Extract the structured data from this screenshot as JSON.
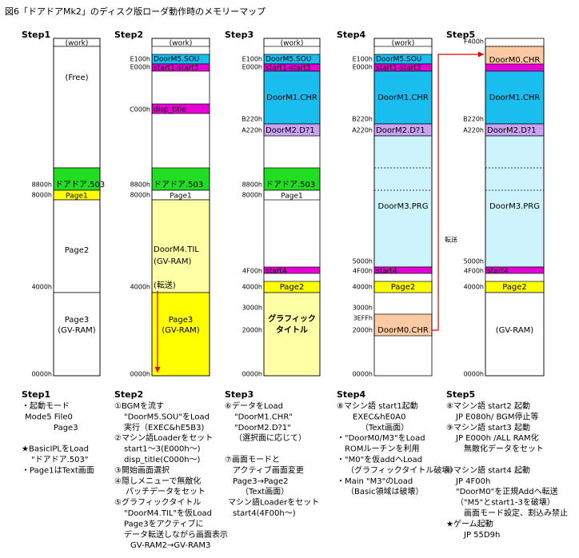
{
  "title": "図6「ドアドアMk2」のディスク版ローダ動作時のメモリーマップ",
  "columns": [
    {
      "step": "Step1",
      "addresses": [
        "8800h",
        "8000h",
        "4000h",
        "0000h"
      ],
      "regions": [
        {
          "label": [
            "(work)"
          ],
          "color": "#ffffff"
        },
        {
          "label": [
            "(Free)"
          ],
          "color": "#ffffff"
        },
        {
          "label": [
            "ドアドア.503"
          ],
          "color": "#22dd22"
        },
        {
          "label": [
            "Page1"
          ],
          "color": "#ffff00"
        },
        {
          "label": [
            "Page2"
          ],
          "color": "#ffffff"
        },
        {
          "label": [
            "Page3",
            "(GV-RAM)"
          ],
          "color": "#ffffff"
        }
      ]
    },
    {
      "step": "Step2",
      "addresses": [
        "E100h",
        "E000h",
        "C000h",
        "8800h",
        "8000h",
        "4000h",
        "0000h"
      ],
      "regions": [
        {
          "label": [
            "(work)"
          ],
          "color": "#ffffff"
        },
        {
          "label": [
            "DoorM5.SOU"
          ],
          "color": "#19bdee"
        },
        {
          "label": [
            "start1-start3"
          ],
          "color": "#e600d6"
        },
        {
          "label": [
            "disp_title"
          ],
          "color": "#e600d6"
        },
        {
          "label": [
            "ドアドア.503"
          ],
          "color": "#22dd22"
        },
        {
          "label": [
            "Page1"
          ],
          "color": "#ffffff"
        },
        {
          "label": [
            "DoorM4.TIL",
            "(GV-RAM)"
          ],
          "color": "#ffffa6"
        },
        {
          "label": [
            "Page3",
            "(GV-RAM)"
          ],
          "color": "#ffff00"
        }
      ]
    },
    {
      "step": "Step3",
      "addresses": [
        "E100h",
        "E000h",
        "B220h",
        "A220h",
        "8800h",
        "8000h",
        "4F00h",
        "4000h",
        "3000h",
        "2000h",
        "0000h"
      ],
      "regions": [
        {
          "label": [
            "(work)"
          ],
          "color": "#ffffff"
        },
        {
          "label": [
            "DoorM5.SOU"
          ],
          "color": "#19bdee"
        },
        {
          "label": [
            "start1-start3"
          ],
          "color": "#e600d6"
        },
        {
          "label": [
            "DoorM1.CHR"
          ],
          "color": "#19bdee"
        },
        {
          "label": [
            "DoorM2.D?1"
          ],
          "color": "#c9a3f2"
        },
        {
          "label": [
            "ドアドア.503"
          ],
          "color": "#22dd22"
        },
        {
          "label": [
            "Page1"
          ],
          "color": "#ffffff"
        },
        {
          "label": [
            "start4"
          ],
          "color": "#e600d6"
        },
        {
          "label": [
            "Page2"
          ],
          "color": "#ffff00"
        },
        {
          "label": [
            "グラフィック",
            "タイトル"
          ],
          "color": "#ffffa6"
        }
      ]
    },
    {
      "step": "Step4",
      "addresses": [
        "E100h",
        "E000h",
        "B220h",
        "A220h",
        "5000h",
        "4F00h",
        "4000h",
        "3000h",
        "3EFFh",
        "2000h",
        "0000h"
      ],
      "regions": [
        {
          "label": [
            "(work)"
          ],
          "color": "#ffffff"
        },
        {
          "label": [
            "DoorM5.SOU"
          ],
          "color": "#19bdee"
        },
        {
          "label": [
            "start1-start3"
          ],
          "color": "#e600d6"
        },
        {
          "label": [
            "DoorM1.CHR"
          ],
          "color": "#19bdee"
        },
        {
          "label": [
            "DoorM2.D?1"
          ],
          "color": "#c9a3f2"
        },
        {
          "label": [
            "DoorM3.PRG"
          ],
          "color": "#cdf3fd"
        },
        {
          "label": [
            "start4"
          ],
          "color": "#e600d6"
        },
        {
          "label": [
            "Page2"
          ],
          "color": "#ffff00"
        },
        {
          "label": [
            "DoorM0.CHR"
          ],
          "color": "#fbc9a2"
        }
      ]
    },
    {
      "step": "Step5",
      "addresses": [
        "F400h",
        "B220h",
        "A220h",
        "5000h",
        "4F00h",
        "4000h",
        "0000h"
      ],
      "regions": [
        {
          "label": [
            "DoorM0.CHR"
          ],
          "color": "#fbc9a2"
        },
        {
          "label": [
            "DoorM1.CHR"
          ],
          "color": "#19bdee"
        },
        {
          "label": [
            "DoorM2.D?1"
          ],
          "color": "#c9a3f2"
        },
        {
          "label": [
            "DoorM3.PRG"
          ],
          "color": "#cdf3fd"
        },
        {
          "label": [
            "start4"
          ],
          "color": "#e600d6"
        },
        {
          "label": [
            "Page2"
          ],
          "color": "#ffff00"
        },
        {
          "label": [
            "(GV-RAM)"
          ],
          "color": "#ffffff"
        }
      ]
    }
  ],
  "annotations": {
    "step2_transfer": "(転送)",
    "step5_transfer": "転送",
    "color": "#e00000"
  },
  "notes": [
    {
      "step": "Step1",
      "lines": [
        {
          "text": "・起動モード"
        },
        {
          "text": "Mode5 File0"
        },
        {
          "text": "Page3"
        },
        {
          "text": "★BasicIPLをLoad"
        },
        {
          "text": "\"ドアドア.503\""
        },
        {
          "text": "・Page1はText画面"
        }
      ]
    },
    {
      "step": "Step2",
      "lines": [
        {
          "text": "①BGMを流す"
        },
        {
          "text": "\"DoorM5.SOU\"をLoad"
        },
        {
          "text": "実行（EXEC&hE5B3)"
        },
        {
          "text": "②マシン語Loaderをセット"
        },
        {
          "text": "start1～3(E000h～)"
        },
        {
          "text": "disp_title(C000h～)"
        },
        {
          "text": "③開始画面選択"
        },
        {
          "text": "④隠しメニューで無敵化"
        },
        {
          "text": "パッチデータをセット"
        },
        {
          "text": "⑤グラフィックタイトル"
        },
        {
          "text": "\"DoorM4.TIL\"を仮Load"
        },
        {
          "text": "Page3をアクティブに"
        },
        {
          "text": "データ転送しながら画面表示"
        },
        {
          "text": "GV-RAM2→GV-RAM3"
        }
      ]
    },
    {
      "step": "Step3",
      "lines": [
        {
          "text": "⑥データをLoad"
        },
        {
          "text": "\"DoorM1.CHR\""
        },
        {
          "text": "\"DoorM2.D?1\""
        },
        {
          "text": "（選択面に応じて）"
        },
        {
          "text": "⑦画面モードと"
        },
        {
          "text": "アクティブ画面変更"
        },
        {
          "text": "Page3→Page2"
        },
        {
          "text": "（Text画面）"
        },
        {
          "text": "マシン語Loaderをセット"
        },
        {
          "text": "start4(4F00h～)"
        }
      ]
    },
    {
      "step": "Step4",
      "lines": [
        {
          "text": "⑧マシン語 start1起動"
        },
        {
          "text": "EXEC&hE0A0"
        },
        {
          "text": "（Text画面）"
        },
        {
          "text": "・\"DoorM0/M3\"をLoad"
        },
        {
          "text": "ROMルーチンを利用"
        },
        {
          "text": "・\"M0\"を仮addへLoad"
        },
        {
          "text": "（グラフィックタイトル破壊）"
        },
        {
          "text": "・Main \"M3\"のLoad"
        },
        {
          "text": "（Basic領域は破壊）",
          "color": "#e00000"
        }
      ]
    },
    {
      "step": "Step5",
      "lines": [
        {
          "text": "⑧マシン語 start2 起動"
        },
        {
          "text": "JP E080h/ BGM停止等"
        },
        {
          "text": "⑨マシン語 start3 起動"
        },
        {
          "text": "JP E000h /ALL RAM化"
        },
        {
          "text": "無敵化データをセット"
        },
        {
          "text": "⑩マシン語 start4 起動"
        },
        {
          "text": "JP 4F00h"
        },
        {
          "text": "\"DoorM0\"を正規Addへ転送"
        },
        {
          "text": "（\"M5\"とstart1-3を破壊）",
          "color": "#e00000"
        },
        {
          "text": "画面モード設定、割込み禁止"
        },
        {
          "text": "★ゲーム起動"
        },
        {
          "text": "JP 55D9h"
        }
      ]
    }
  ]
}
